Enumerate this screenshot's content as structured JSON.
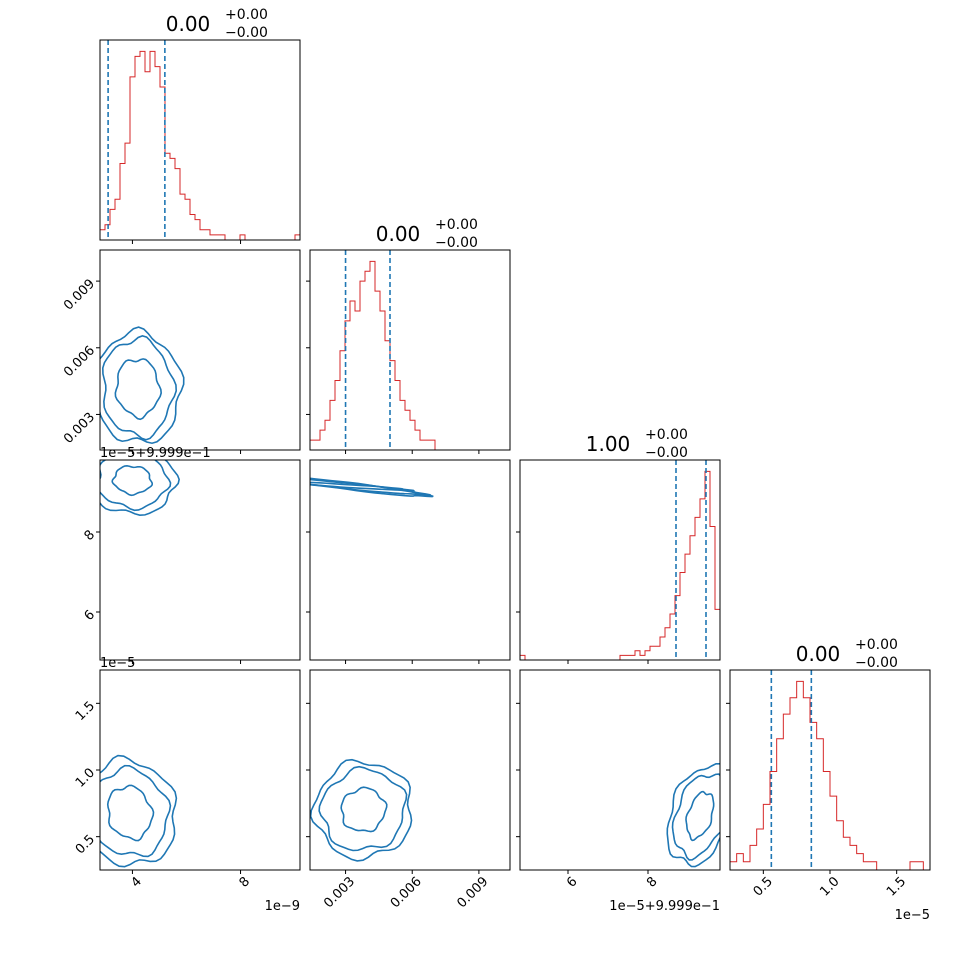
{
  "colors": {
    "hist": "#d62728",
    "quantile": "#1f77b4",
    "contour": "#1f77b4",
    "axes": "#000000",
    "background": "#ffffff"
  },
  "chart_data": {
    "type": "corner",
    "grid": false,
    "titles": [
      {
        "main": "0.00",
        "sup": "+0.00",
        "sub": "−0.00"
      },
      {
        "main": "0.00",
        "sup": "+0.00",
        "sub": "−0.00"
      },
      {
        "main": "1.00",
        "sup": "+0.00",
        "sub": "−0.00"
      },
      {
        "main": "0.00",
        "sup": "+0.00",
        "sub": "−0.00"
      }
    ],
    "offset_texts": {
      "col0_x": "1e−9",
      "col1_x": "",
      "col2_x": "1e−5+9.999e−1",
      "col3_x": "1e−5",
      "row2_y": "1e−5+9.999e−1",
      "row3_y": "1e−5"
    },
    "ticks": {
      "col0_x": [
        "4",
        "8"
      ],
      "col1_x": [
        "0.003",
        "0.006",
        "0.009"
      ],
      "col2_x": [
        "6",
        "8"
      ],
      "col3_x": [
        "0.5",
        "1.0",
        "1.5"
      ],
      "row1_y": [
        "0.009",
        "0.006",
        "0.003"
      ],
      "row2_y": [
        "8",
        "6"
      ],
      "row3_y": [
        "1.5",
        "1.0",
        "0.5"
      ]
    },
    "marginals": [
      {
        "name": "param0",
        "xlim": [
          2.8,
          10.2
        ],
        "quantile_lines": [
          3.1,
          5.2
        ],
        "counts": [
          2,
          3,
          6,
          8,
          15,
          19,
          32,
          36,
          37,
          33,
          37,
          34,
          30,
          17,
          16,
          14,
          9,
          8,
          5,
          4,
          2,
          2,
          1,
          1,
          1,
          0,
          0,
          0,
          1,
          0,
          0,
          0,
          0,
          0,
          0,
          0,
          0,
          0,
          0,
          1
        ]
      },
      {
        "name": "param1",
        "xlim": [
          0.0014,
          0.0104
        ],
        "quantile_lines": [
          0.003,
          0.005
        ],
        "counts": [
          1,
          1,
          2,
          3,
          5,
          7,
          10,
          13,
          15,
          14,
          17,
          18,
          19,
          16,
          14,
          11,
          9,
          7,
          5,
          4,
          3,
          2,
          1,
          1,
          1,
          0,
          0,
          0,
          0,
          0,
          0,
          0,
          0,
          0,
          0,
          0,
          0,
          0,
          0,
          0
        ]
      },
      {
        "name": "param2",
        "xlim": [
          4.8,
          9.8
        ],
        "quantile_lines": [
          8.7,
          9.45
        ],
        "counts": [
          1,
          0,
          0,
          0,
          0,
          0,
          0,
          0,
          0,
          0,
          0,
          0,
          0,
          0,
          0,
          0,
          0,
          0,
          0,
          0,
          1,
          1,
          1,
          2,
          1,
          2,
          3,
          3,
          5,
          7,
          10,
          14,
          19,
          23,
          27,
          31,
          35,
          41,
          29,
          11
        ]
      },
      {
        "name": "param3",
        "xlim": [
          0.25,
          1.75
        ],
        "quantile_lines": [
          0.56,
          0.86
        ],
        "counts": [
          1,
          2,
          1,
          3,
          5,
          8,
          12,
          16,
          19,
          21,
          23,
          21,
          18,
          16,
          12,
          9,
          6,
          4,
          3,
          2,
          1,
          1,
          0,
          0,
          0,
          0,
          0,
          1,
          1,
          0
        ]
      }
    ],
    "contours_2d": [
      {
        "x": "param0",
        "y": "param1",
        "center": [
          4.2,
          0.0042
        ],
        "levels": [
          [
            0.8,
            0.0013
          ],
          [
            1.3,
            0.0022
          ],
          [
            1.6,
            0.0025
          ]
        ],
        "corr": 0.1
      },
      {
        "x": "param0",
        "y": "param2",
        "center": [
          4.0,
          9.3
        ],
        "levels": [
          [
            0.7,
            0.35
          ],
          [
            1.3,
            0.7
          ],
          [
            1.6,
            0.85
          ]
        ],
        "corr": -0.1
      },
      {
        "x": "param1",
        "y": "param2",
        "center": [
          0.0031,
          9.15
        ],
        "levels": [
          [
            0.0028,
            0.1
          ],
          [
            0.0034,
            0.2
          ],
          [
            0.0036,
            0.25
          ]
        ],
        "corr": -0.97
      },
      {
        "x": "param0",
        "y": "param3",
        "center": [
          3.9,
          0.68
        ],
        "levels": [
          [
            0.8,
            0.2
          ],
          [
            1.4,
            0.33
          ],
          [
            1.7,
            0.4
          ]
        ],
        "corr": 0.4
      },
      {
        "x": "param1",
        "y": "param3",
        "center": [
          0.0038,
          0.7
        ],
        "levels": [
          [
            0.001,
            0.16
          ],
          [
            0.0019,
            0.3
          ],
          [
            0.0022,
            0.36
          ]
        ],
        "corr": 0.6
      },
      {
        "x": "param2",
        "y": "param3",
        "center": [
          9.3,
          0.66
        ],
        "levels": [
          [
            0.3,
            0.18
          ],
          [
            0.6,
            0.32
          ],
          [
            0.75,
            0.38
          ]
        ],
        "corr": -0.4
      }
    ]
  }
}
